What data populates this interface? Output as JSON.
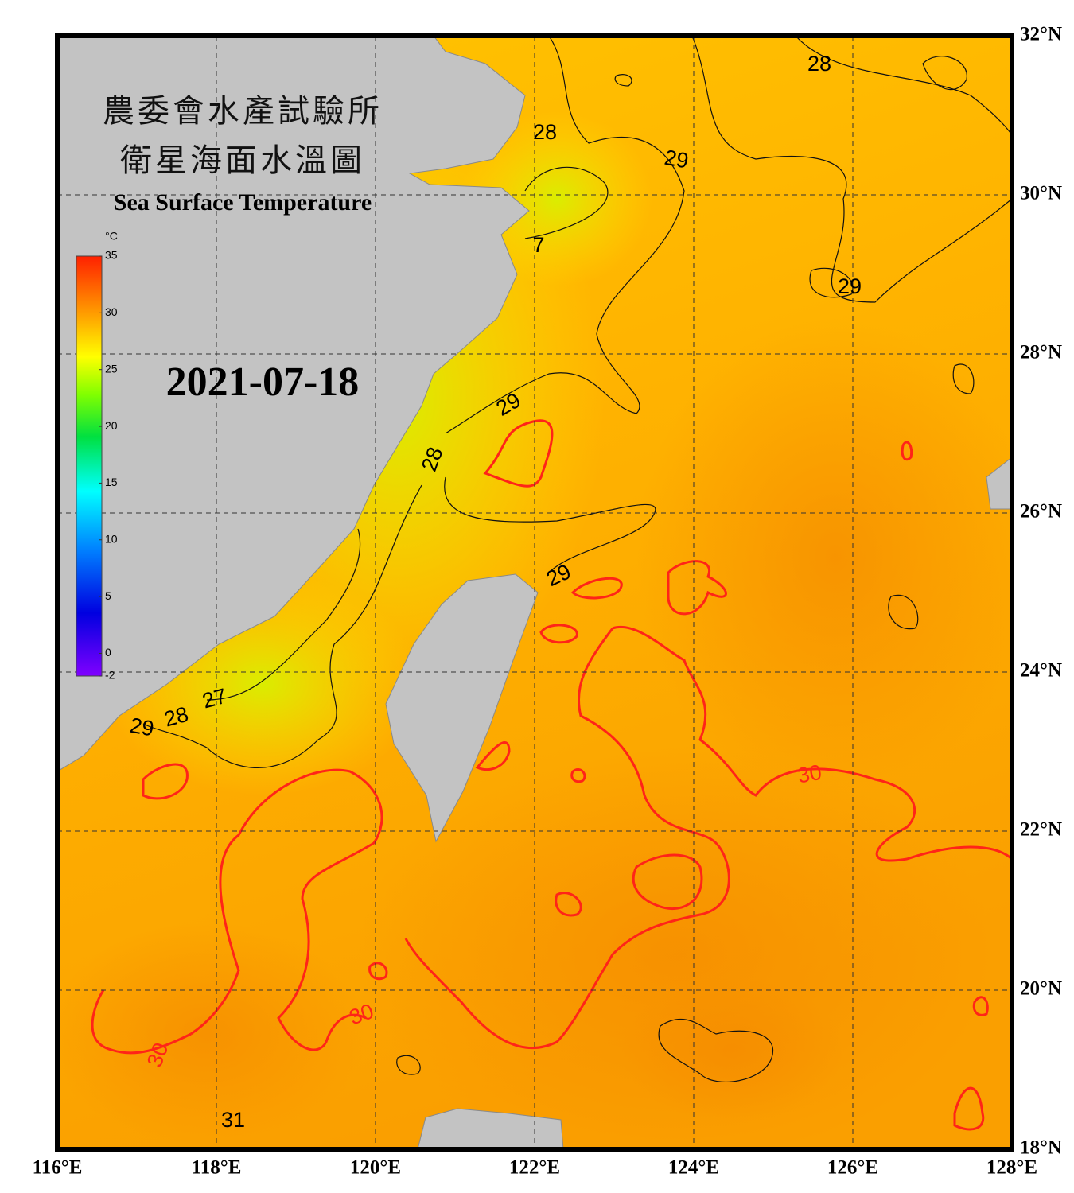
{
  "title_zh_1": "農委會水產試驗所",
  "title_zh_2": "衛星海面水溫圖",
  "title_en": "Sea Surface Temperature",
  "date": "2021-07-18",
  "colorbar": {
    "unit": "°C",
    "range": [
      -2,
      35
    ],
    "ticks": [
      35,
      30,
      25,
      20,
      15,
      10,
      5,
      0,
      -2
    ]
  },
  "map": {
    "lon_range": [
      116,
      128
    ],
    "lat_range": [
      18,
      32
    ],
    "lon_ticks": [
      {
        "value": 116,
        "label": "116°E"
      },
      {
        "value": 118,
        "label": "118°E"
      },
      {
        "value": 120,
        "label": "120°E"
      },
      {
        "value": 122,
        "label": "122°E"
      },
      {
        "value": 124,
        "label": "124°E"
      },
      {
        "value": 126,
        "label": "126°E"
      },
      {
        "value": 128,
        "label": "128°E"
      }
    ],
    "lat_ticks": [
      {
        "value": 18,
        "label": "18°N"
      },
      {
        "value": 20,
        "label": "20°N"
      },
      {
        "value": 22,
        "label": "22°N"
      },
      {
        "value": 24,
        "label": "24°N"
      },
      {
        "value": 26,
        "label": "26°N"
      },
      {
        "value": 28,
        "label": "28°N"
      },
      {
        "value": 30,
        "label": "30°N"
      },
      {
        "value": 32,
        "label": "32°N"
      }
    ]
  },
  "contour_labels": [
    28,
    28,
    29,
    7,
    29,
    29,
    28,
    29,
    27,
    28,
    29,
    30,
    30,
    30,
    31
  ]
}
